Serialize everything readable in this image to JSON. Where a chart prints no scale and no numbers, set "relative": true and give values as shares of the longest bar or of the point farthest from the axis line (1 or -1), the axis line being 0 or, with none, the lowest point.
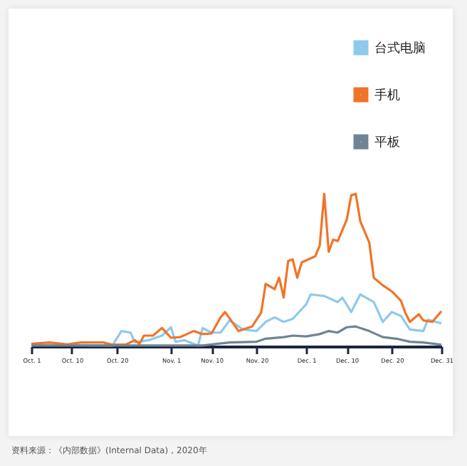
{
  "chart_data": {
    "type": "line",
    "relative": true,
    "legend": "top right",
    "grid": false,
    "marker": "none",
    "line_style": "solid",
    "tick_labels": "x",
    "xlim": [
      "2020-10-01",
      "2020-12-31"
    ],
    "xticks": [
      {
        "value": "2020-10-01",
        "label": "Oct. 1"
      },
      {
        "value": "2020-10-10",
        "label": "Oct. 10"
      },
      {
        "value": "2020-10-20",
        "label": "Oct. 20"
      },
      {
        "value": "2020-11-01",
        "label": "Nov. 1"
      },
      {
        "value": "2020-11-10",
        "label": "Nov. 10"
      },
      {
        "value": "2020-11-20",
        "label": "Nov. 20"
      },
      {
        "value": "2020-12-01",
        "label": "Dec. 1"
      },
      {
        "value": "2020-12-10",
        "label": "Dec. 10"
      },
      {
        "value": "2020-12-20",
        "label": "Dec. 20"
      },
      {
        "value": "2020-12-31",
        "label": "Dec. 31"
      }
    ],
    "series": [
      {
        "name": "台式电脑",
        "color": "#8ec9ee",
        "x": [
          "2020-10-01",
          "2020-10-19",
          "2020-10-21",
          "2020-10-23",
          "2020-10-24",
          "2020-10-27",
          "2020-10-30",
          "2020-11-01",
          "2020-11-02",
          "2020-11-04",
          "2020-11-06",
          "2020-11-07",
          "2020-11-08",
          "2020-11-10",
          "2020-11-12",
          "2020-11-14",
          "2020-11-17",
          "2020-11-20",
          "2020-11-22",
          "2020-11-24",
          "2020-11-26",
          "2020-11-28",
          "2020-12-01",
          "2020-12-02",
          "2020-12-05",
          "2020-12-08",
          "2020-12-09",
          "2020-12-11",
          "2020-12-13",
          "2020-12-16",
          "2020-12-18",
          "2020-12-20",
          "2020-12-22",
          "2020-12-24",
          "2020-12-27",
          "2020-12-28",
          "2020-12-31"
        ],
        "values": [
          0.01,
          0.005,
          0.1,
          0.09,
          0.025,
          0.04,
          0.07,
          0.125,
          0.03,
          0.04,
          0.016,
          0.005,
          0.12,
          0.09,
          0.09,
          0.17,
          0.11,
          0.1,
          0.16,
          0.19,
          0.16,
          0.18,
          0.275,
          0.34,
          0.33,
          0.29,
          0.32,
          0.225,
          0.34,
          0.29,
          0.16,
          0.225,
          0.2,
          0.11,
          0.1,
          0.175,
          0.15
        ]
      },
      {
        "name": "手机",
        "color": "#f07427",
        "x": [
          "2020-10-01",
          "2020-10-05",
          "2020-10-09",
          "2020-10-12",
          "2020-10-17",
          "2020-10-19",
          "2020-10-22",
          "2020-10-24",
          "2020-10-25",
          "2020-10-26",
          "2020-10-28",
          "2020-10-30",
          "2020-11-01",
          "2020-11-03",
          "2020-11-06",
          "2020-11-08",
          "2020-11-10",
          "2020-11-12",
          "2020-11-13",
          "2020-11-16",
          "2020-11-19",
          "2020-11-21",
          "2020-11-22",
          "2020-11-24",
          "2020-11-25",
          "2020-11-26",
          "2020-11-27",
          "2020-11-28",
          "2020-11-29",
          "2020-11-30",
          "2020-12-03",
          "2020-12-04",
          "2020-12-05",
          "2020-12-06",
          "2020-12-07",
          "2020-12-08",
          "2020-12-10",
          "2020-12-11",
          "2020-12-12",
          "2020-12-13",
          "2020-12-15",
          "2020-12-16",
          "2020-12-18",
          "2020-12-20",
          "2020-12-22",
          "2020-12-23",
          "2020-12-24",
          "2020-12-26",
          "2020-12-27",
          "2020-12-29",
          "2020-12-31"
        ],
        "values": [
          0.016,
          0.025,
          0.0125,
          0.025,
          0.025,
          0.01,
          0.0125,
          0.04,
          0.016,
          0.07,
          0.07,
          0.12,
          0.056,
          0.06,
          0.1,
          0.08,
          0.084,
          0.19,
          0.225,
          0.1,
          0.13,
          0.22,
          0.41,
          0.375,
          0.45,
          0.32,
          0.56,
          0.57,
          0.45,
          0.55,
          0.59,
          0.66,
          1.0,
          0.62,
          0.7,
          0.69,
          0.83,
          0.99,
          1.0,
          0.82,
          0.68,
          0.45,
          0.4,
          0.36,
          0.3,
          0.22,
          0.16,
          0.21,
          0.17,
          0.16,
          0.23
        ]
      },
      {
        "name": "平板",
        "color": "#6e8494",
        "x": [
          "2020-10-01",
          "2020-11-08",
          "2020-11-14",
          "2020-11-20",
          "2020-11-22",
          "2020-11-26",
          "2020-11-28",
          "2020-12-01",
          "2020-12-04",
          "2020-12-06",
          "2020-12-08",
          "2020-12-10",
          "2020-12-12",
          "2020-12-15",
          "2020-12-18",
          "2020-12-21",
          "2020-12-24",
          "2020-12-27",
          "2020-12-31"
        ],
        "values": [
          0.005,
          0.005,
          0.025,
          0.03,
          0.05,
          0.06,
          0.07,
          0.065,
          0.08,
          0.1,
          0.09,
          0.125,
          0.13,
          0.1,
          0.06,
          0.05,
          0.03,
          0.025,
          0.01
        ]
      }
    ],
    "annotations": [
      "资料来源：《内部数据》(Internal Data)，2020年"
    ]
  }
}
